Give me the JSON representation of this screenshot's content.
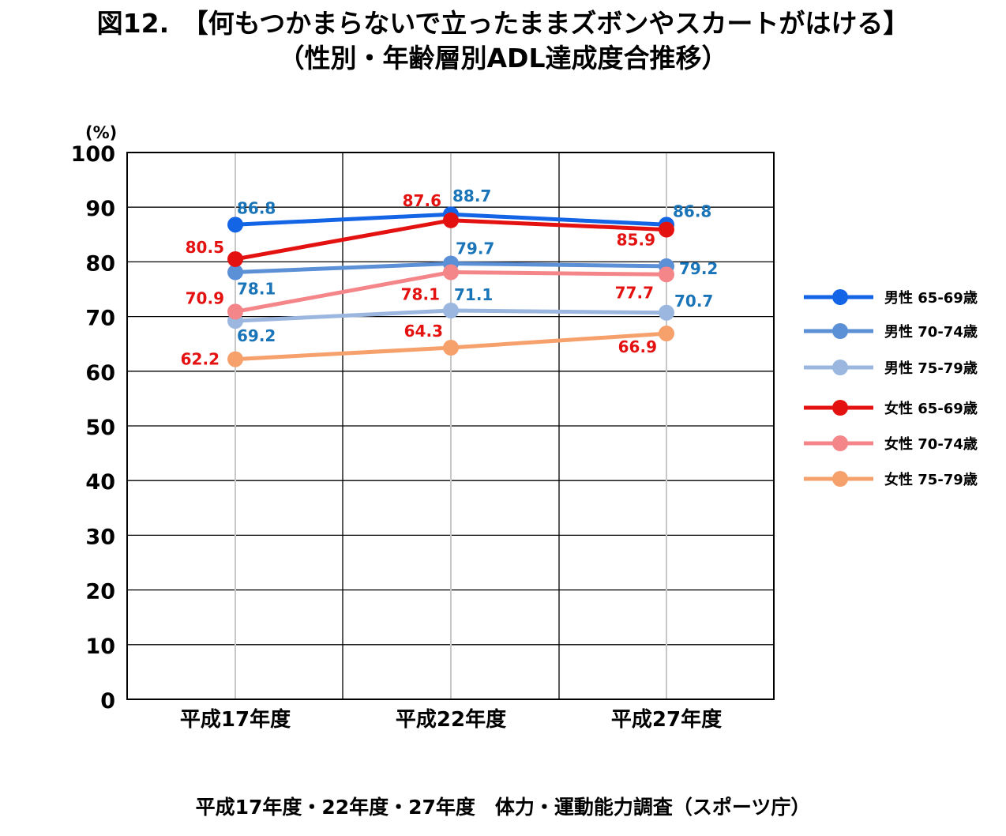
{
  "title_line1": "図12.　【何もつかまらないで立ったままズボンやスカートがはける】",
  "title_line2": "（性別・年齢層別ADL達成度合推移）",
  "source": "平成17年度・22年度・27年度　体力・運動能力調査（スポーツ庁）",
  "chart_data": {
    "type": "line",
    "title": "図12.　【何もつかまらないで立ったままズボンやスカートがはける】（性別・年齢層別ADL達成度合推移）",
    "ylabel": "(%)",
    "ylim": [
      0,
      100
    ],
    "yticks": [
      "0",
      "10",
      "20",
      "30",
      "40",
      "50",
      "60",
      "70",
      "80",
      "90",
      "100"
    ],
    "categories": [
      "平成17年度",
      "平成22年度",
      "平成27年度"
    ],
    "grid": true,
    "legend_position": "right",
    "series": [
      {
        "name": "男性 65-69歳",
        "color": "#1464e6",
        "label_color": "#1a74b8",
        "values": [
          86.8,
          88.7,
          86.8
        ]
      },
      {
        "name": "男性 70-74歳",
        "color": "#5b8fd6",
        "label_color": "#1a74b8",
        "values": [
          78.1,
          79.7,
          79.2
        ]
      },
      {
        "name": "男性 75-79歳",
        "color": "#9bb7e0",
        "label_color": "#1a74b8",
        "values": [
          69.2,
          71.1,
          70.7
        ]
      },
      {
        "name": "女性 65-69歳",
        "color": "#e41111",
        "label_color": "#e41111",
        "values": [
          80.5,
          87.6,
          85.9
        ]
      },
      {
        "name": "女性 70-74歳",
        "color": "#f4868a",
        "label_color": "#e41111",
        "values": [
          70.9,
          78.1,
          77.7
        ]
      },
      {
        "name": "女性 75-79歳",
        "color": "#f6a06b",
        "label_color": "#e41111",
        "values": [
          62.2,
          64.3,
          66.9
        ]
      }
    ]
  }
}
